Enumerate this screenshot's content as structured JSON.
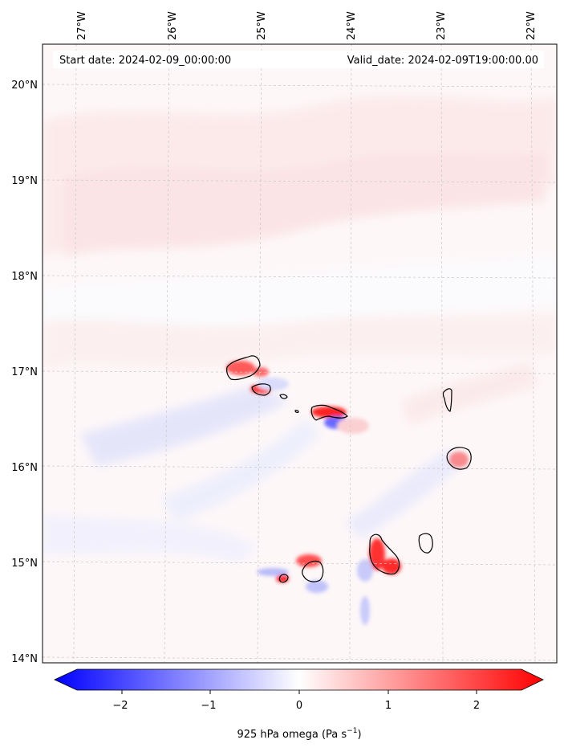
{
  "header": {
    "start_label": "Start date: 2024-02-09_00:00:00",
    "valid_label": "Valid_date: 2024-02-09T19:00:00.00"
  },
  "map": {
    "lon_ticks": [
      "27°W",
      "26°W",
      "25°W",
      "24°W",
      "23°W",
      "22°W"
    ],
    "lat_ticks": [
      "20°N",
      "19°N",
      "18°N",
      "17°N",
      "16°N",
      "15°N",
      "14°N"
    ],
    "gridlines": "dashed"
  },
  "colorbar": {
    "ticks": [
      "−2",
      "−1",
      "0",
      "1",
      "2"
    ],
    "label": "925 hPa omega (Pa s",
    "label_sup": "−1",
    "label_end": ")",
    "colors": {
      "negative": "#0000ff",
      "zero": "#ffffff",
      "positive": "#ff0000"
    }
  }
}
